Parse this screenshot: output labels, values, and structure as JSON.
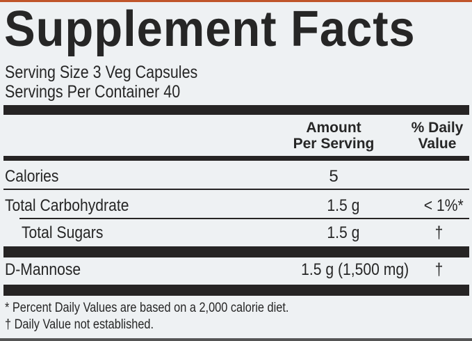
{
  "title": "Supplement Facts",
  "serving_size": "Serving Size 3 Veg Capsules",
  "servings_per_container": "Servings Per Container 40",
  "header": {
    "amount_line1": "Amount",
    "amount_line2": "Per Serving",
    "dv_line1": "% Daily",
    "dv_line2": "Value"
  },
  "rows": [
    {
      "name": "Calories",
      "amount": "5",
      "dv": ""
    },
    {
      "name": "Total Carbohydrate",
      "amount": "1.5 g",
      "dv": "< 1%*"
    },
    {
      "name": "Total Sugars",
      "amount": "1.5 g",
      "dv": "†"
    },
    {
      "name": "D-Mannose",
      "amount": "1.5 g (1,500 mg)",
      "dv": "†"
    }
  ],
  "footnotes": [
    "* Percent Daily Values are based on a 2,000 calorie diet.",
    "† Daily Value not established."
  ],
  "colors": {
    "background": "#eef1f3",
    "ink": "#262626",
    "accent_strip": "#c0552a"
  }
}
